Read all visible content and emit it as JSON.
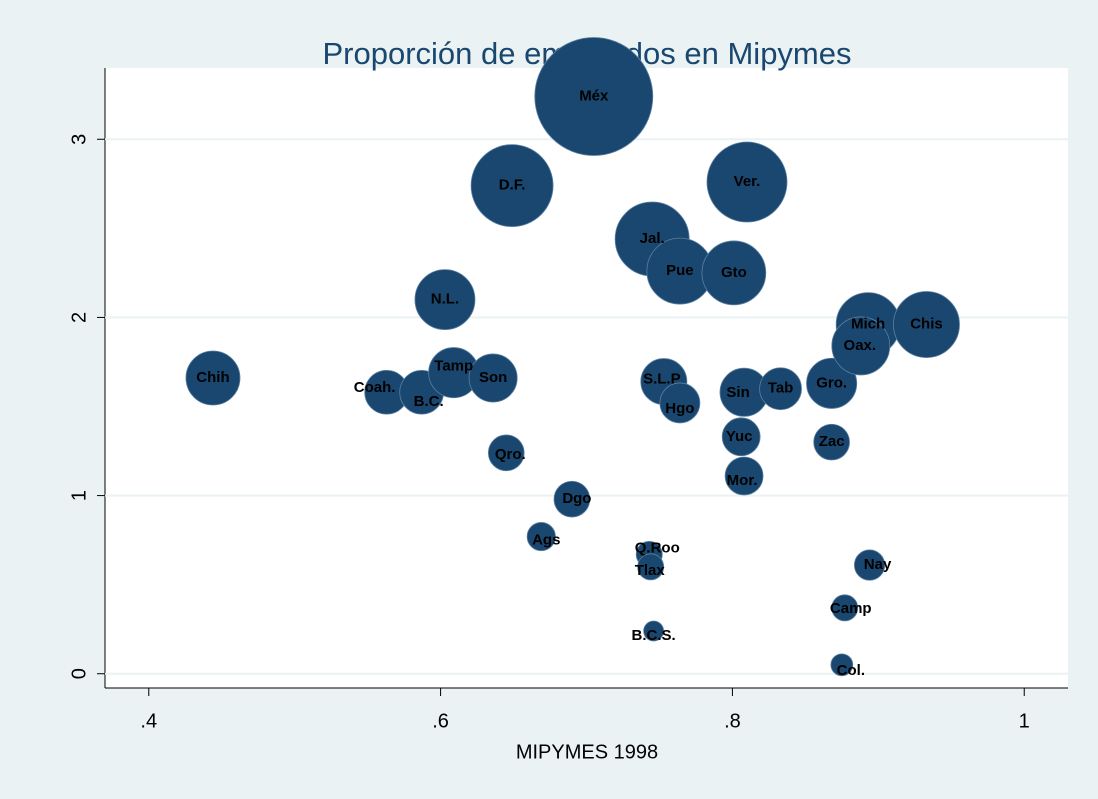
{
  "chart_data": {
    "type": "scatter",
    "title": "Proporción de empleados en Mipymes",
    "x_label": "MIPYMES 1998",
    "labels": [
      "Chih",
      "Coah.",
      "B.C.",
      "Tamp",
      "Son",
      "N.L.",
      "D.F.",
      "Qro.",
      "Méx",
      "Jal.",
      "Pue",
      "Gto",
      "Ver.",
      "S.L.P",
      "Hgo",
      "Dgo",
      "Ags",
      "Q.Roo",
      "Tlax",
      "B.C.S.",
      "Sin",
      "Tab",
      "Yuc",
      "Mor.",
      "Gro.",
      "Zac",
      "Mich",
      "Oax.",
      "Chis",
      "Nay",
      "Camp",
      "Col."
    ],
    "x": [
      0.444,
      0.563,
      0.587,
      0.609,
      0.636,
      0.603,
      0.649,
      0.645,
      0.705,
      0.745,
      0.764,
      0.801,
      0.81,
      0.753,
      0.764,
      0.69,
      0.669,
      0.743,
      0.744,
      0.746,
      0.808,
      0.833,
      0.806,
      0.808,
      0.868,
      0.868,
      0.893,
      0.888,
      0.933,
      0.894,
      0.877,
      0.875
    ],
    "values": [
      1.66,
      1.58,
      1.58,
      1.69,
      1.66,
      2.1,
      2.74,
      1.24,
      3.24,
      2.44,
      2.26,
      2.25,
      2.76,
      1.64,
      1.52,
      0.98,
      0.77,
      0.67,
      0.6,
      0.24,
      1.58,
      1.6,
      1.33,
      1.11,
      1.63,
      1.3,
      1.96,
      1.84,
      1.96,
      0.61,
      0.37,
      0.05
    ],
    "sizes": [
      73,
      48,
      48,
      63,
      58,
      90,
      168,
      32,
      348,
      137,
      109,
      102,
      160,
      53,
      40,
      32,
      20,
      17,
      17,
      10,
      58,
      44,
      36,
      36,
      63,
      32,
      102,
      84,
      109,
      23,
      17,
      12
    ],
    "color": "#1a476f",
    "xlim": [
      0.37,
      1.03
    ],
    "ylim": [
      -0.08,
      3.4
    ],
    "xticks": [
      {
        "value": 0.4,
        "label": ".4"
      },
      {
        "value": 0.6,
        "label": ".6"
      },
      {
        "value": 0.8,
        "label": ".8"
      },
      1
    ],
    "yticks": [
      0,
      1,
      2,
      3
    ],
    "grid": true
  }
}
